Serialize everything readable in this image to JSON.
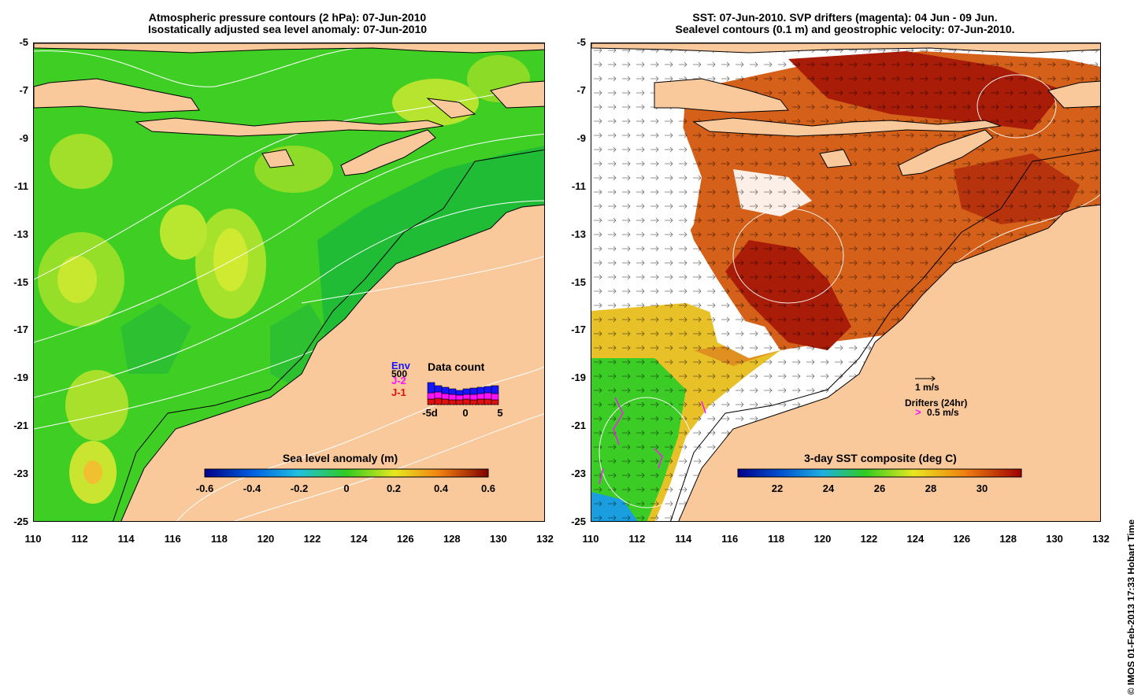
{
  "left_panel": {
    "title_line1": "Atmospheric pressure contours (2 hPa): 07-Jun-2010",
    "title_line2": "Isostatically adjusted sea level anomaly: 07-Jun-2010",
    "colorbar": {
      "label": "Sea level anomaly (m)",
      "ticks": [
        "-0.6",
        "-0.4",
        "-0.2",
        "0",
        "0.2",
        "0.4",
        "0.6"
      ]
    },
    "data_count": {
      "title": "Data count",
      "series_labels": [
        "Env",
        "J-2",
        "J-1"
      ],
      "y_value_label": "500",
      "x_ticks": [
        "-5d",
        "0",
        "5"
      ],
      "colors": [
        "#1515ff",
        "#ff10ff",
        "#e01010"
      ]
    }
  },
  "right_panel": {
    "title_line1": "SST: 07-Jun-2010. SVP drifters (magenta): 04 Jun - 09 Jun.",
    "title_line2": "Sealevel contours (0.1 m) and geostrophic velocity: 07-Jun-2010.",
    "colorbar": {
      "label": "3-day SST composite (deg C)",
      "ticks": [
        "22",
        "24",
        "26",
        "28",
        "30"
      ]
    },
    "velocity_scale_label": "1 m/s",
    "drifters_label": "Drifters (24hr)",
    "drifters_symbol": ">",
    "drifters_scale_label": "0.5 m/s"
  },
  "axes": {
    "y_ticks": [
      "-5",
      "-7",
      "-9",
      "-11",
      "-13",
      "-15",
      "-17",
      "-19",
      "-21",
      "-23",
      "-25"
    ],
    "x_ticks": [
      "110",
      "112",
      "114",
      "116",
      "118",
      "120",
      "122",
      "124",
      "126",
      "128",
      "130",
      "132"
    ]
  },
  "credit": "© IMOS 01-Feb-2013 17:33 Hobart Time",
  "colors": {
    "land": "#f9c89b",
    "ocean_green": "#33cc1f",
    "sst_dark_red": "#a81c08",
    "sst_orange": "#d4601a"
  }
}
